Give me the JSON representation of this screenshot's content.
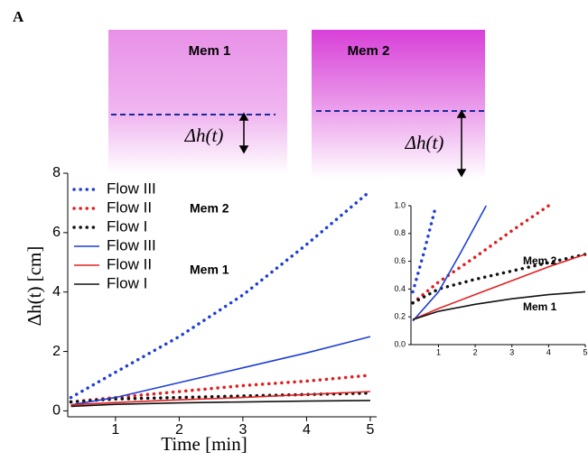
{
  "panel_label": "A",
  "images": [
    {
      "label": "Mem 1",
      "annotation": "Δh(t)"
    },
    {
      "label": "Mem 2",
      "annotation": "Δh(t)"
    }
  ],
  "chart_data": [
    {
      "type": "line",
      "x_label": "Time [min]",
      "y_label": "Δh(t) [cm]",
      "x": [
        0.3,
        1,
        2,
        3,
        4,
        5
      ],
      "xlim": [
        0.25,
        5.1
      ],
      "ylim": [
        -0.2,
        8
      ],
      "xticks": [
        1,
        2,
        3,
        4,
        5
      ],
      "yticks": [
        0,
        2,
        4,
        6,
        8
      ],
      "legend_groups": [
        "Mem 2",
        "Mem 1"
      ],
      "series": [
        {
          "name": "Flow III",
          "color": "#1f3fd6",
          "style": "dotted",
          "values": [
            0.45,
            1.3,
            2.5,
            3.9,
            5.6,
            7.4
          ]
        },
        {
          "name": "Flow II",
          "color": "#e02020",
          "style": "dotted",
          "values": [
            0.3,
            0.45,
            0.65,
            0.85,
            1.0,
            1.2
          ]
        },
        {
          "name": "Flow I",
          "color": "#111111",
          "style": "dotted",
          "values": [
            0.3,
            0.4,
            0.45,
            0.5,
            0.55,
            0.6
          ]
        },
        {
          "name": "Flow III",
          "color": "#1f3fd6",
          "style": "solid",
          "values": [
            0.2,
            0.45,
            0.95,
            1.45,
            1.95,
            2.5
          ]
        },
        {
          "name": "Flow II",
          "color": "#e02020",
          "style": "solid",
          "values": [
            0.2,
            0.28,
            0.37,
            0.45,
            0.55,
            0.65
          ]
        },
        {
          "name": "Flow I",
          "color": "#111111",
          "style": "solid",
          "values": [
            0.15,
            0.22,
            0.27,
            0.3,
            0.33,
            0.35
          ]
        }
      ]
    },
    {
      "type": "line",
      "xlim": [
        0.25,
        5
      ],
      "ylim": [
        0,
        1
      ],
      "xticks": [
        1,
        2,
        3,
        4,
        5
      ],
      "yticks": [
        {
          "value": 0,
          "label": "0.0"
        },
        {
          "value": 0.2,
          "label": "0.2"
        },
        {
          "value": 0.4,
          "label": "0.4"
        },
        {
          "value": 0.6,
          "label": "0.6"
        },
        {
          "value": 0.8,
          "label": "0.8"
        },
        {
          "value": 1,
          "label": "1.0"
        }
      ],
      "annotations": [
        "Mem 2",
        "Mem 1"
      ],
      "series": [
        {
          "color": "#1f3fd6",
          "style": "dotted",
          "x": [
            0.3,
            0.6,
            0.9
          ],
          "values": [
            0.38,
            0.66,
            0.97
          ]
        },
        {
          "color": "#e02020",
          "style": "dotted",
          "x": [
            0.3,
            1,
            2,
            3,
            4
          ],
          "values": [
            0.3,
            0.45,
            0.63,
            0.82,
            1.0
          ]
        },
        {
          "color": "#111111",
          "style": "dotted",
          "x": [
            0.3,
            1,
            2,
            3,
            4,
            5
          ],
          "values": [
            0.3,
            0.4,
            0.47,
            0.53,
            0.59,
            0.65
          ]
        },
        {
          "color": "#1f3fd6",
          "style": "solid",
          "x": [
            0.3,
            1,
            1.6,
            2.3
          ],
          "values": [
            0.17,
            0.38,
            0.66,
            1.0
          ]
        },
        {
          "color": "#e02020",
          "style": "solid",
          "x": [
            0.3,
            1,
            2,
            3,
            4,
            5
          ],
          "values": [
            0.18,
            0.26,
            0.36,
            0.46,
            0.56,
            0.65
          ]
        },
        {
          "color": "#111111",
          "style": "solid",
          "x": [
            0.3,
            1,
            2,
            3,
            4,
            5
          ],
          "values": [
            0.18,
            0.24,
            0.29,
            0.33,
            0.36,
            0.38
          ]
        }
      ]
    }
  ]
}
